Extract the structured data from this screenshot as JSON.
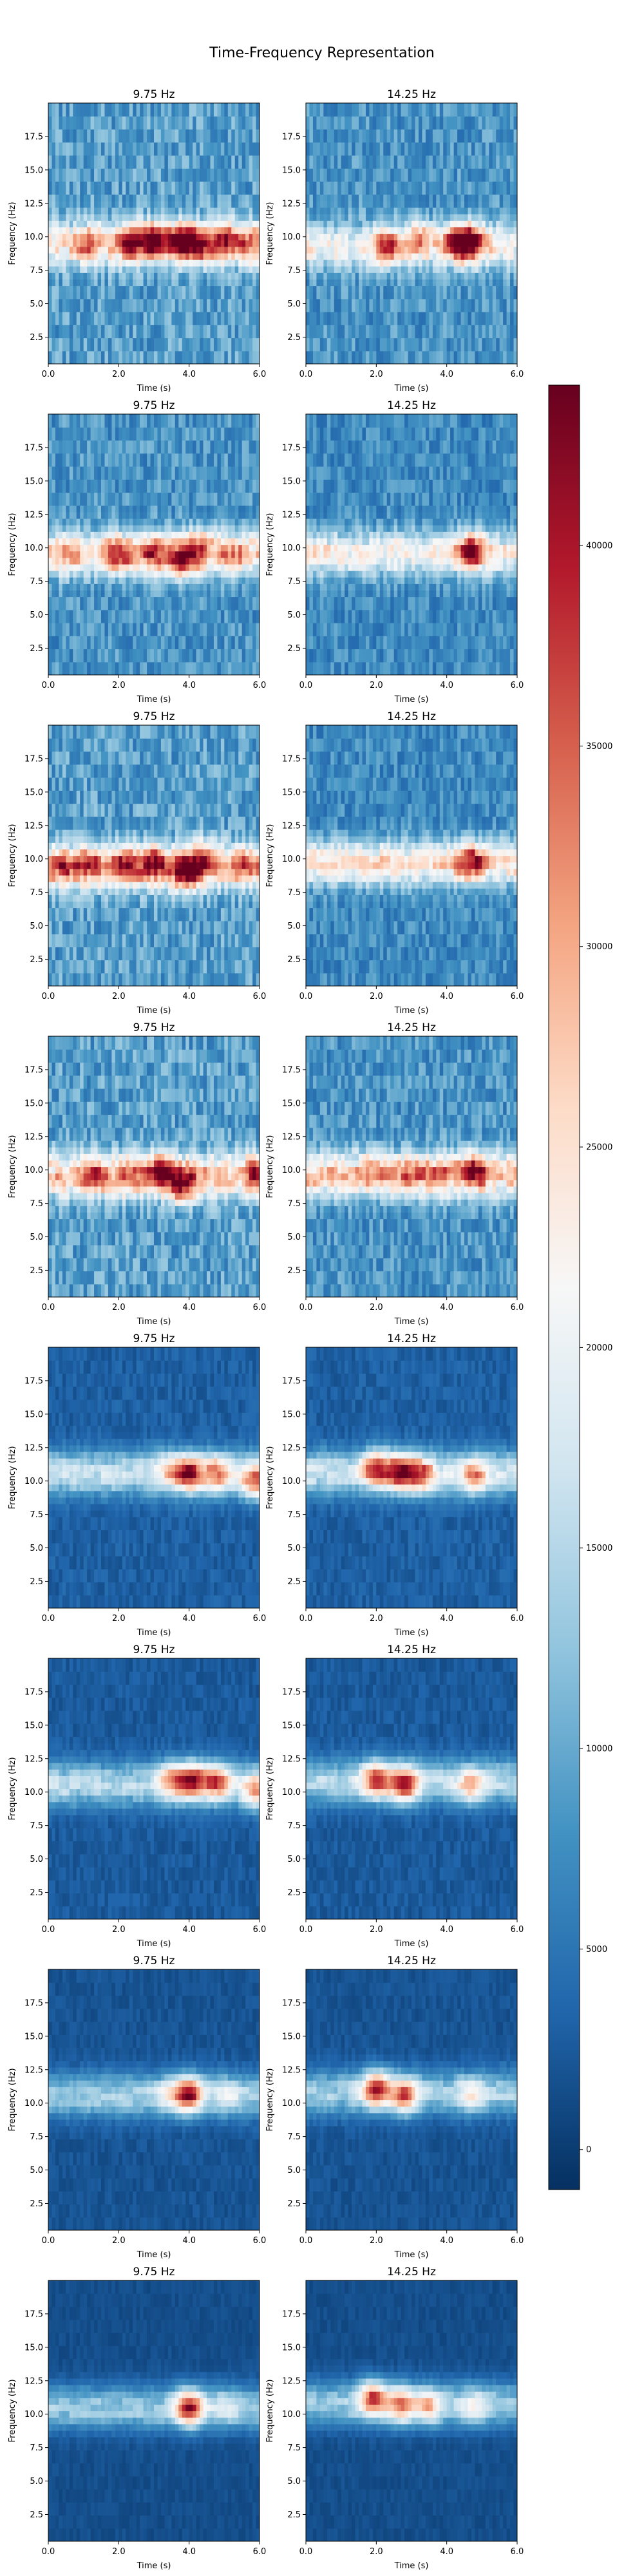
{
  "figure": {
    "title": "Time-Frequency Representation"
  },
  "chart_data": {
    "type": "heatmap",
    "title": "Time-Frequency Representation",
    "colormap": "RdBu_r",
    "colorbar": {
      "min": -1000,
      "max": 44000,
      "ticks": [
        0,
        5000,
        10000,
        15000,
        20000,
        25000,
        30000,
        35000,
        40000
      ],
      "tick_labels": [
        "0",
        "5000",
        "10000",
        "15000",
        "20000",
        "25000",
        "30000",
        "35000",
        "40000"
      ]
    },
    "xlabel": "Time (s)",
    "ylabel": "Frequency (Hz)",
    "xlim": [
      0,
      6
    ],
    "ylim": [
      0.5,
      20
    ],
    "x_ticks": [
      "0.0",
      "2.0",
      "4.0",
      "6.0"
    ],
    "y_ticks": [
      "2.5",
      "5.0",
      "7.5",
      "10.0",
      "12.5",
      "15.0",
      "17.5"
    ],
    "panels": [
      {
        "row": 1,
        "col": 1,
        "title": "9.75 Hz",
        "band_freq": 9.5,
        "background": 9000,
        "band_level": 16000,
        "peaks": [
          [
            1.1,
            9.5,
            26000
          ],
          [
            2.3,
            9.6,
            36000
          ],
          [
            3.0,
            9.8,
            38000
          ],
          [
            3.8,
            9.7,
            40000
          ],
          [
            4.3,
            9.4,
            33000
          ],
          [
            5.1,
            9.7,
            34000
          ],
          [
            5.8,
            9.5,
            25000
          ]
        ]
      },
      {
        "row": 1,
        "col": 2,
        "title": "14.25 Hz",
        "band_freq": 9.3,
        "background": 8000,
        "band_level": 14000,
        "peaks": [
          [
            2.3,
            9.2,
            33000
          ],
          [
            3.2,
            9.9,
            28000
          ],
          [
            4.3,
            9.6,
            36000
          ],
          [
            4.7,
            9.7,
            38000
          ]
        ]
      },
      {
        "row": 2,
        "col": 1,
        "title": "9.75 Hz",
        "band_freq": 9.6,
        "background": 8000,
        "band_level": 17000,
        "peaks": [
          [
            0.5,
            9.5,
            24000
          ],
          [
            2.0,
            9.5,
            33000
          ],
          [
            3.0,
            9.6,
            32000
          ],
          [
            3.8,
            9.0,
            39000
          ],
          [
            4.3,
            10.3,
            30000
          ],
          [
            5.2,
            9.5,
            28000
          ]
        ]
      },
      {
        "row": 2,
        "col": 2,
        "title": "14.25 Hz",
        "band_freq": 9.6,
        "background": 7000,
        "band_level": 16000,
        "peaks": [
          [
            4.7,
            9.8,
            39000
          ]
        ]
      },
      {
        "row": 3,
        "col": 1,
        "title": "9.75 Hz",
        "band_freq": 9.4,
        "background": 9000,
        "band_level": 18000,
        "peaks": [
          [
            0.4,
            9.4,
            30000
          ],
          [
            1.2,
            9.6,
            31000
          ],
          [
            2.2,
            9.6,
            33000
          ],
          [
            3.0,
            9.8,
            36000
          ],
          [
            3.9,
            9.0,
            40000
          ],
          [
            4.4,
            10.2,
            34000
          ],
          [
            5.6,
            9.4,
            28000
          ]
        ]
      },
      {
        "row": 3,
        "col": 2,
        "title": "14.25 Hz",
        "band_freq": 9.7,
        "background": 7000,
        "band_level": 18000,
        "peaks": [
          [
            4.7,
            9.8,
            37000
          ]
        ]
      },
      {
        "row": 4,
        "col": 1,
        "title": "9.75 Hz",
        "band_freq": 9.6,
        "background": 9000,
        "band_level": 18000,
        "peaks": [
          [
            1.3,
            9.6,
            30000
          ],
          [
            2.3,
            9.6,
            30000
          ],
          [
            3.2,
            10.0,
            38000
          ],
          [
            3.8,
            8.8,
            40000
          ],
          [
            5.9,
            9.8,
            32000
          ]
        ]
      },
      {
        "row": 4,
        "col": 2,
        "title": "14.25 Hz",
        "band_freq": 9.7,
        "background": 8000,
        "band_level": 20000,
        "peaks": [
          [
            2.0,
            10.0,
            27000
          ],
          [
            3.0,
            9.9,
            28000
          ],
          [
            3.8,
            9.4,
            29000
          ],
          [
            4.8,
            10.0,
            38000
          ]
        ]
      },
      {
        "row": 5,
        "col": 1,
        "title": "9.75 Hz",
        "band_freq": 10.6,
        "background": 3000,
        "band_level": 14000,
        "peaks": [
          [
            3.4,
            10.9,
            24000
          ],
          [
            4.0,
            10.6,
            40000
          ],
          [
            4.8,
            10.6,
            32000
          ],
          [
            5.9,
            10.0,
            36000
          ]
        ]
      },
      {
        "row": 5,
        "col": 2,
        "title": "14.25 Hz",
        "band_freq": 10.6,
        "background": 3000,
        "band_level": 14000,
        "peaks": [
          [
            2.0,
            11.0,
            39000
          ],
          [
            2.7,
            10.7,
            40000
          ],
          [
            3.3,
            10.5,
            34000
          ],
          [
            4.8,
            10.4,
            30000
          ]
        ]
      },
      {
        "row": 6,
        "col": 1,
        "title": "9.75 Hz",
        "band_freq": 10.6,
        "background": 2500,
        "band_level": 13000,
        "peaks": [
          [
            3.5,
            11.0,
            30000
          ],
          [
            4.1,
            10.9,
            39000
          ],
          [
            4.8,
            10.8,
            35000
          ],
          [
            5.9,
            10.0,
            30000
          ]
        ]
      },
      {
        "row": 6,
        "col": 2,
        "title": "14.25 Hz",
        "band_freq": 10.8,
        "background": 2500,
        "band_level": 13000,
        "peaks": [
          [
            2.0,
            11.0,
            36000
          ],
          [
            2.8,
            10.6,
            40000
          ],
          [
            4.7,
            10.5,
            27000
          ]
        ]
      },
      {
        "row": 7,
        "col": 1,
        "title": "9.75 Hz",
        "band_freq": 10.6,
        "background": 2000,
        "band_level": 12000,
        "peaks": [
          [
            4.0,
            10.7,
            40000
          ],
          [
            3.4,
            10.6,
            20000
          ],
          [
            5.1,
            10.6,
            18000
          ]
        ]
      },
      {
        "row": 7,
        "col": 2,
        "title": "14.25 Hz",
        "band_freq": 10.8,
        "background": 2000,
        "band_level": 12000,
        "peaks": [
          [
            2.0,
            11.1,
            40000
          ],
          [
            2.8,
            10.6,
            34000
          ],
          [
            4.7,
            10.6,
            22000
          ]
        ]
      },
      {
        "row": 8,
        "col": 1,
        "title": "9.75 Hz",
        "band_freq": 10.5,
        "background": 1500,
        "band_level": 12000,
        "peaks": [
          [
            4.0,
            10.5,
            40000
          ],
          [
            5.0,
            10.5,
            18000
          ]
        ]
      },
      {
        "row": 8,
        "col": 2,
        "title": "14.25 Hz",
        "band_freq": 10.8,
        "background": 1500,
        "band_level": 12000,
        "peaks": [
          [
            1.9,
            11.2,
            38000
          ],
          [
            2.7,
            10.7,
            33000
          ],
          [
            3.5,
            10.6,
            28000
          ],
          [
            4.8,
            10.5,
            22000
          ]
        ]
      }
    ]
  }
}
